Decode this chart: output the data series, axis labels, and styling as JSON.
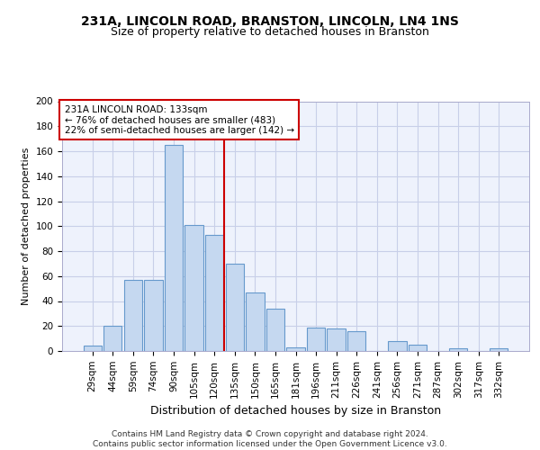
{
  "title1": "231A, LINCOLN ROAD, BRANSTON, LINCOLN, LN4 1NS",
  "title2": "Size of property relative to detached houses in Branston",
  "xlabel": "Distribution of detached houses by size in Branston",
  "ylabel": "Number of detached properties",
  "categories": [
    "29sqm",
    "44sqm",
    "59sqm",
    "74sqm",
    "90sqm",
    "105sqm",
    "120sqm",
    "135sqm",
    "150sqm",
    "165sqm",
    "181sqm",
    "196sqm",
    "211sqm",
    "226sqm",
    "241sqm",
    "256sqm",
    "271sqm",
    "287sqm",
    "302sqm",
    "317sqm",
    "332sqm"
  ],
  "values": [
    4,
    20,
    57,
    57,
    165,
    101,
    93,
    70,
    47,
    34,
    3,
    19,
    18,
    16,
    0,
    8,
    5,
    0,
    2,
    0,
    2
  ],
  "bar_color": "#c5d8f0",
  "bar_edge_color": "#6699cc",
  "vline_x": 6.5,
  "vline_color": "#cc0000",
  "annotation_line1": "231A LINCOLN ROAD: 133sqm",
  "annotation_line2": "← 76% of detached houses are smaller (483)",
  "annotation_line3": "22% of semi-detached houses are larger (142) →",
  "annotation_box_color": "#ffffff",
  "annotation_box_edge": "#cc0000",
  "ylim": [
    0,
    200
  ],
  "yticks": [
    0,
    20,
    40,
    60,
    80,
    100,
    120,
    140,
    160,
    180,
    200
  ],
  "footer": "Contains HM Land Registry data © Crown copyright and database right 2024.\nContains public sector information licensed under the Open Government Licence v3.0.",
  "bg_color": "#eef2fc",
  "grid_color": "#c8cfe8",
  "title1_fontsize": 10,
  "title2_fontsize": 9,
  "xlabel_fontsize": 9,
  "ylabel_fontsize": 8,
  "tick_fontsize": 7.5,
  "footer_fontsize": 6.5
}
